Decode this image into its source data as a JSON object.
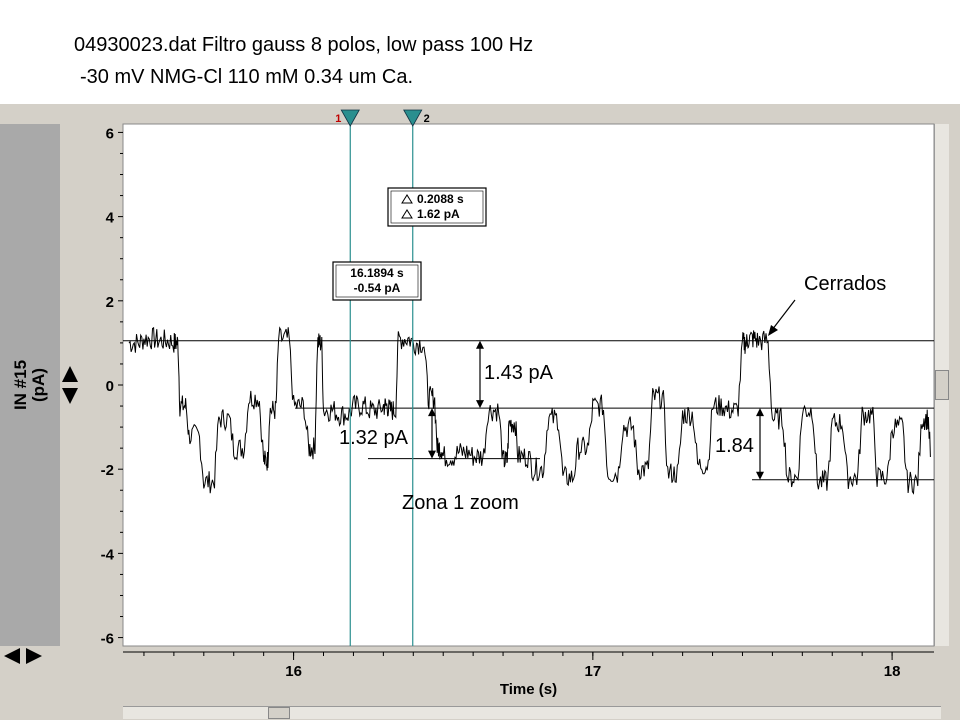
{
  "caption": {
    "line1": "04930023.dat Filtro gauss 8 polos, low pass 100 Hz",
    "line2": "-30 mV NMG-Cl 110 mM 0.34 um Ca."
  },
  "axis": {
    "y_label_line1": "IN #15",
    "y_label_line2": "(pA)",
    "x_label": "Time (s)"
  },
  "cursors": [
    {
      "label": "1",
      "time": 16.1894,
      "color": "#2a8f8f"
    },
    {
      "label": "2",
      "time": 16.3982,
      "color": "#2a8f8f"
    }
  ],
  "readouts": {
    "delta_time": "0.2088 s",
    "delta_current": "1.62 pA",
    "cursor1_time": "16.1894 s",
    "cursor1_current": "-0.54 pA"
  },
  "annotations": {
    "cerrados": "Cerrados",
    "a143": "1.43 pA",
    "a132": "1.32 pA",
    "a184": "1.84",
    "zona": "Zona 1 zoom"
  },
  "colors": {
    "trace": "#000000",
    "cursor": "#2a8f8f",
    "window": "#d4d0c8"
  },
  "chart_data": {
    "type": "line",
    "xlabel": "Time (s)",
    "ylabel": "IN #15 (pA)",
    "xlim": [
      15.43,
      18.14
    ],
    "ylim": [
      -6.2,
      6.2
    ],
    "xticks": [
      16,
      17,
      18
    ],
    "yticks": [
      6,
      4,
      2,
      0,
      -2,
      -4,
      -6
    ],
    "grid": false,
    "series": [
      {
        "x": [
          15.45,
          15.5,
          15.55,
          15.6,
          15.62,
          15.65,
          15.7,
          15.75,
          15.8,
          15.85,
          15.9,
          15.92,
          15.95,
          16.0,
          16.05,
          16.08,
          16.1,
          16.15,
          16.2,
          16.25,
          16.3,
          16.32,
          16.35,
          16.4,
          16.45,
          16.48,
          16.5,
          16.55,
          16.6,
          16.65,
          16.7,
          16.72,
          16.75,
          16.8,
          16.85,
          16.9,
          16.95,
          17.0,
          17.05,
          17.1,
          17.15,
          17.2,
          17.25,
          17.3,
          17.35,
          17.4,
          17.45,
          17.5,
          17.52,
          17.55,
          17.6,
          17.65,
          17.7,
          17.75,
          17.8,
          17.85,
          17.9,
          17.95,
          18.0,
          18.05,
          18.1,
          18.13
        ],
        "y": [
          1.0,
          1.1,
          1.05,
          1.0,
          -0.5,
          -1.2,
          -2.3,
          -0.8,
          -1.5,
          -0.3,
          -1.8,
          -0.6,
          1.1,
          -0.5,
          -1.5,
          1.0,
          -0.6,
          -0.7,
          -0.5,
          -0.6,
          -0.5,
          -0.6,
          1.1,
          1.0,
          -0.3,
          -1.5,
          -1.7,
          -1.6,
          -1.7,
          -0.6,
          -1.8,
          -0.9,
          -1.7,
          -2.0,
          -0.8,
          -2.2,
          -1.5,
          -0.5,
          -2.1,
          -1.0,
          -2.0,
          -0.3,
          -2.1,
          -0.7,
          -1.9,
          -0.5,
          -0.6,
          1.0,
          1.1,
          1.05,
          -0.8,
          -2.2,
          -0.6,
          -2.3,
          -0.9,
          -2.2,
          -0.7,
          -2.2,
          -1.0,
          -2.3,
          -0.8,
          -1.9
        ]
      }
    ],
    "annotations": [
      "1.43 pA",
      "1.32 pA",
      "1.84",
      "Cerrados",
      "Zona 1 zoom"
    ]
  }
}
